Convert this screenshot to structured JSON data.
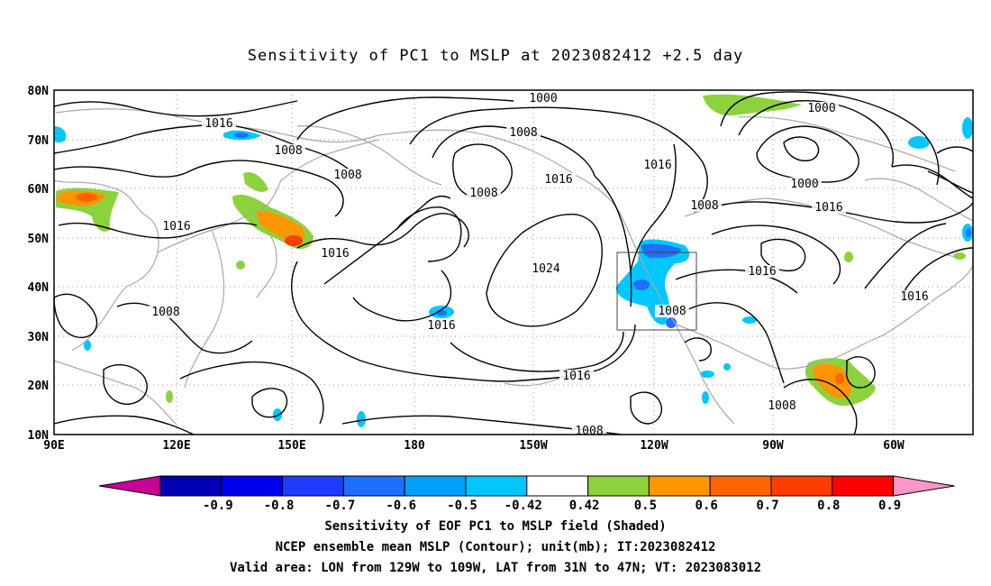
{
  "title": "Sensitivity of PC1 to MSLP at 2023082412 +2.5 day",
  "map": {
    "lat_labels": [
      "80N",
      "70N",
      "60N",
      "50N",
      "40N",
      "30N",
      "20N",
      "10N"
    ],
    "lon_labels": [
      "90E",
      "120E",
      "150E",
      "180",
      "150W",
      "120W",
      "90W",
      "60W"
    ],
    "contour_labels": [
      {
        "text": "1016",
        "id": "c1"
      },
      {
        "text": "1008",
        "id": "c2"
      },
      {
        "text": "1008",
        "id": "c3"
      },
      {
        "text": "1008",
        "id": "c4"
      },
      {
        "text": "1016",
        "id": "c5"
      },
      {
        "text": "1016",
        "id": "c6"
      },
      {
        "text": "1008",
        "id": "c7"
      },
      {
        "text": "1008",
        "id": "c8"
      },
      {
        "text": "1000",
        "id": "c9"
      },
      {
        "text": "1016",
        "id": "c10"
      },
      {
        "text": "1024",
        "id": "c11"
      },
      {
        "text": "1016",
        "id": "c12"
      },
      {
        "text": "1016",
        "id": "c13"
      },
      {
        "text": "1008",
        "id": "c14"
      },
      {
        "text": "1016",
        "id": "c15"
      },
      {
        "text": "1008",
        "id": "c16"
      },
      {
        "text": "1000",
        "id": "c17"
      },
      {
        "text": "1000",
        "id": "c18"
      },
      {
        "text": "1016",
        "id": "c19"
      },
      {
        "text": "1016",
        "id": "c20"
      },
      {
        "text": "1016",
        "id": "c21"
      },
      {
        "text": "1008",
        "id": "c22"
      },
      {
        "text": "1008",
        "id": "c23"
      }
    ],
    "valid_box": {
      "lon_min": "129W",
      "lon_max": "109W",
      "lat_min": "31N",
      "lat_max": "47N"
    }
  },
  "colorbar": {
    "labels": [
      "-0.9",
      "-0.8",
      "-0.7",
      "-0.6",
      "-0.5",
      "-0.42",
      "0.42",
      "0.5",
      "0.6",
      "0.7",
      "0.8",
      "0.9"
    ],
    "colors": [
      "#0000b4",
      "#0000f0",
      "#1e3cff",
      "#1e6eff",
      "#00a0ff",
      "#00c8ff",
      "#ffffff",
      "#8cd23c",
      "#ff9600",
      "#ff6400",
      "#ff3c00",
      "#ff0000"
    ],
    "under_color": "#c80096",
    "over_color": "#ff96c8"
  },
  "captions": [
    "Sensitivity of EOF PC1 to MSLP field (Shaded)",
    "NCEP ensemble mean MSLP (Contour); unit(mb); IT:2023082412",
    "Valid area: LON from 129W to 109W, LAT from 31N to 47N; VT: 2023083012"
  ]
}
